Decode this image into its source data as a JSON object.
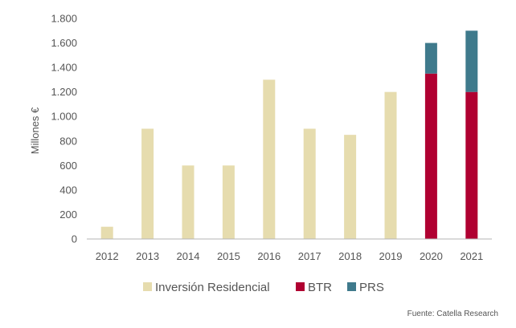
{
  "colors": {
    "residencial": "#e6dcae",
    "btr": "#b00031",
    "prs": "#3f7a8c",
    "axis": "#b5b5b5",
    "text": "#555555"
  },
  "source": "Fuente: Catella Research",
  "chart_data": {
    "type": "bar",
    "stacked": true,
    "ylabel": "Millones €",
    "ylim": [
      0,
      1800
    ],
    "yticks": [
      {
        "value": 0,
        "label": "0"
      },
      {
        "value": 200,
        "label": "200"
      },
      {
        "value": 400,
        "label": "400"
      },
      {
        "value": 600,
        "label": "600"
      },
      {
        "value": 800,
        "label": "800"
      },
      {
        "value": 1000,
        "label": "1.000"
      },
      {
        "value": 1200,
        "label": "1.200"
      },
      {
        "value": 1400,
        "label": "1.400"
      },
      {
        "value": 1600,
        "label": "1.600"
      },
      {
        "value": 1800,
        "label": "1.800"
      }
    ],
    "categories": [
      "2012",
      "2013",
      "2014",
      "2015",
      "2016",
      "2017",
      "2018",
      "2019",
      "2020",
      "2021"
    ],
    "series": [
      {
        "name": "Inversión Residencial",
        "color": "#e6dcae",
        "values": [
          100,
          900,
          600,
          600,
          1300,
          900,
          850,
          1200,
          0,
          0
        ]
      },
      {
        "name": "BTR",
        "color": "#b00031",
        "values": [
          0,
          0,
          0,
          0,
          0,
          0,
          0,
          0,
          1350,
          1200
        ]
      },
      {
        "name": "PRS",
        "color": "#3f7a8c",
        "values": [
          0,
          0,
          0,
          0,
          0,
          0,
          0,
          0,
          250,
          500
        ]
      }
    ],
    "grid": false,
    "legend_position": "bottom"
  }
}
